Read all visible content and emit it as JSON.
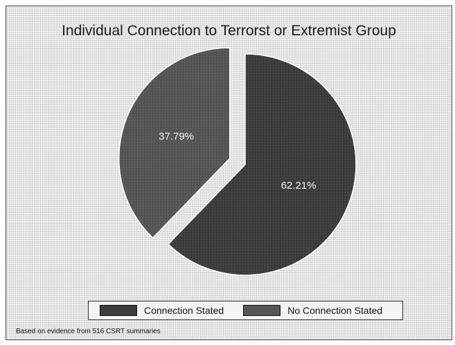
{
  "chart_data": {
    "type": "pie",
    "title": "Individual Connection to Terrorst or Extremist Group",
    "slices": [
      {
        "name": "Connection Stated",
        "value": 62.21,
        "label": "62.21%",
        "color": "#3d3d3d",
        "exploded": false
      },
      {
        "name": "No Connection Stated",
        "value": 37.79,
        "label": "37.79%",
        "color": "#565656",
        "exploded": true
      }
    ],
    "legend": {
      "placement": "bottom",
      "items": [
        {
          "label": "Connection Stated",
          "color": "#3d3d3d"
        },
        {
          "label": "No Connection Stated",
          "color": "#565656"
        }
      ]
    },
    "footnote": "Based on evidence from 516 CSRT summaries"
  }
}
